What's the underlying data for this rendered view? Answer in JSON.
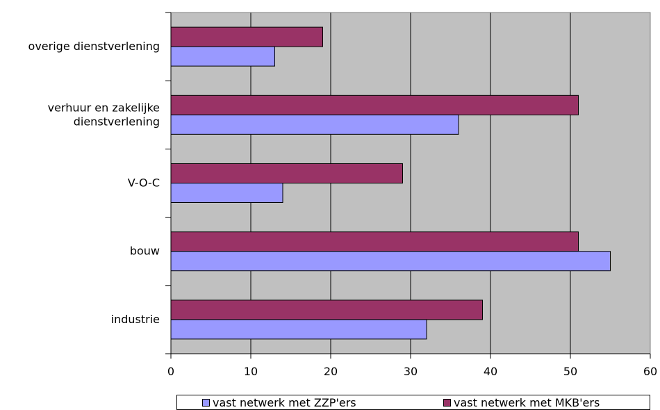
{
  "chart_data": {
    "type": "bar",
    "orientation": "horizontal",
    "categories": [
      "overige dienstverlening",
      "verhuur en zakelijke dienstverlening",
      "V-O-C",
      "bouw",
      "industrie"
    ],
    "category_lines": [
      [
        "overige dienstverlening"
      ],
      [
        "verhuur en zakelijke",
        "dienstverlening"
      ],
      [
        "V-O-C"
      ],
      [
        "bouw"
      ],
      [
        "industrie"
      ]
    ],
    "series": [
      {
        "name": "vast netwerk met ZZP'ers",
        "color": "#9999ff",
        "values": [
          13,
          36,
          14,
          55,
          32
        ]
      },
      {
        "name": "vast netwerk met MKB'ers",
        "color": "#993366",
        "values": [
          19,
          51,
          29,
          51,
          39
        ]
      }
    ],
    "xlim": [
      0,
      60
    ],
    "xticks": [
      0,
      10,
      20,
      30,
      40,
      50,
      60
    ],
    "grid": true,
    "plot_background": "#c0c0c0",
    "legend_position": "bottom"
  }
}
